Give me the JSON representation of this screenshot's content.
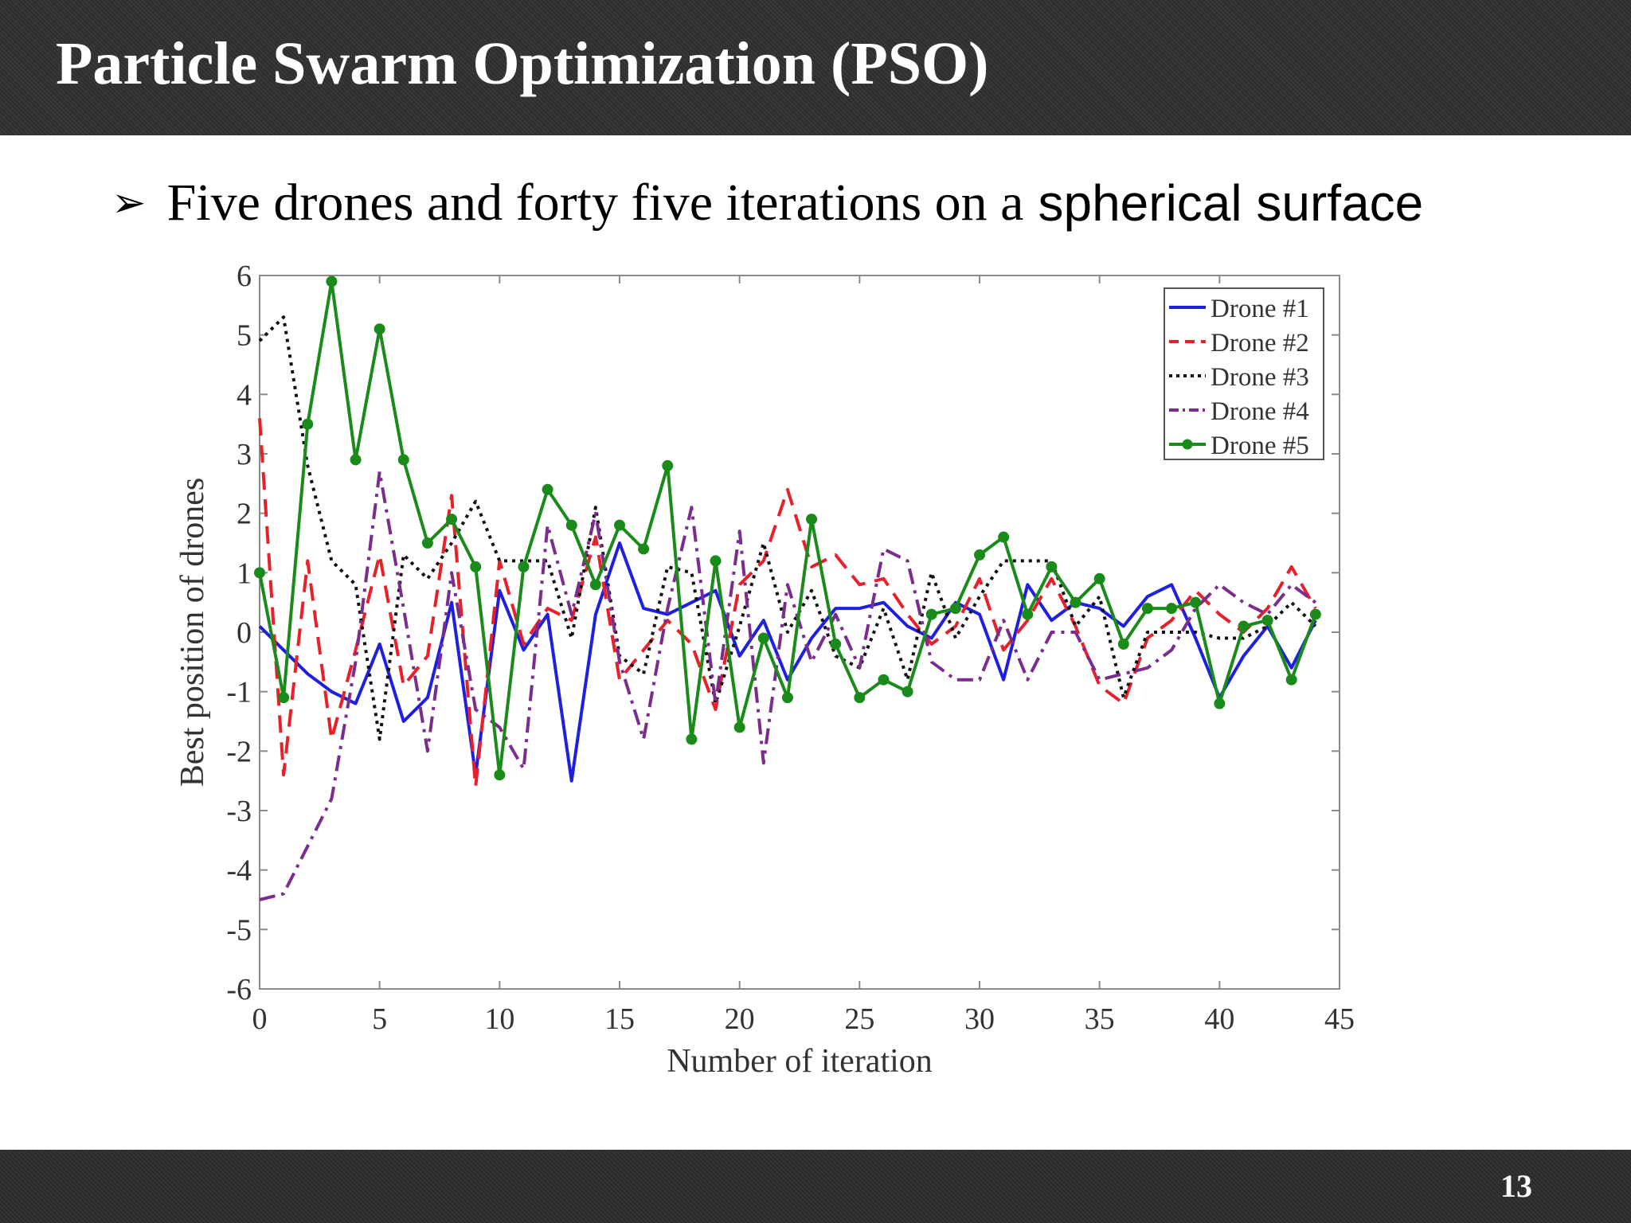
{
  "slide": {
    "title": "Particle Swarm Optimization (PSO)",
    "bullet_text": "Five drones and forty five iterations on a",
    "bullet_text_emphasis": "spherical surface",
    "page_number": "13"
  },
  "chart_data": {
    "type": "line",
    "xlabel": "Number of iteration",
    "ylabel": "Best position of drones",
    "xlim": [
      0,
      45
    ],
    "ylim": [
      -6,
      6
    ],
    "xticks": [
      0,
      5,
      10,
      15,
      20,
      25,
      30,
      35,
      40,
      45
    ],
    "yticks": [
      -6,
      -5,
      -4,
      -3,
      -2,
      -1,
      0,
      1,
      2,
      3,
      4,
      5,
      6
    ],
    "grid": false,
    "legend_position": "top-right",
    "series": [
      {
        "name": "Drone #1",
        "color": "#1f1fe0",
        "style": "solid",
        "marker": "none",
        "x": [
          0,
          1,
          2,
          3,
          4,
          5,
          6,
          7,
          8,
          9,
          10,
          11,
          12,
          13,
          14,
          15,
          16,
          17,
          18,
          19,
          20,
          21,
          22,
          23,
          24,
          25,
          26,
          27,
          28,
          29,
          30,
          31,
          32,
          33,
          34,
          35,
          36,
          37,
          38,
          39,
          40,
          41,
          42,
          43,
          44
        ],
        "y": [
          0.1,
          -0.3,
          -0.7,
          -1.0,
          -1.2,
          -0.2,
          -1.5,
          -1.1,
          0.5,
          -2.4,
          0.7,
          -0.3,
          0.3,
          -2.5,
          0.3,
          1.5,
          0.4,
          0.3,
          0.5,
          0.7,
          -0.4,
          0.2,
          -0.8,
          -0.1,
          0.4,
          0.4,
          0.5,
          0.1,
          -0.1,
          0.5,
          0.3,
          -0.8,
          0.8,
          0.2,
          0.5,
          0.4,
          0.1,
          0.6,
          0.8,
          -0.1,
          -1.1,
          -0.4,
          0.1,
          -0.6,
          0.2
        ]
      },
      {
        "name": "Drone #2",
        "color": "#e8202a",
        "style": "dashed",
        "marker": "none",
        "x": [
          0,
          1,
          2,
          3,
          4,
          5,
          6,
          7,
          8,
          9,
          10,
          11,
          12,
          13,
          14,
          15,
          16,
          17,
          18,
          19,
          20,
          21,
          22,
          23,
          24,
          25,
          26,
          27,
          28,
          29,
          30,
          31,
          32,
          33,
          34,
          35,
          36,
          37,
          38,
          39,
          40,
          41,
          42,
          43,
          44
        ],
        "y": [
          3.6,
          -2.4,
          1.2,
          -1.8,
          -0.3,
          1.3,
          -0.9,
          -0.4,
          2.3,
          -2.6,
          1.2,
          -0.2,
          0.4,
          0.2,
          1.6,
          -0.8,
          -0.3,
          0.2,
          -0.2,
          -1.3,
          0.8,
          1.2,
          2.4,
          1.1,
          1.3,
          0.8,
          0.9,
          0.3,
          -0.2,
          0.1,
          0.9,
          -0.3,
          0.2,
          0.9,
          0.1,
          -0.9,
          -1.2,
          -0.1,
          0.2,
          0.7,
          0.3,
          0.0,
          0.4,
          1.1,
          0.4
        ]
      },
      {
        "name": "Drone #3",
        "color": "#111111",
        "style": "dotted",
        "marker": "none",
        "x": [
          0,
          1,
          2,
          3,
          4,
          5,
          6,
          7,
          8,
          9,
          10,
          11,
          12,
          13,
          14,
          15,
          16,
          17,
          18,
          19,
          20,
          21,
          22,
          23,
          24,
          25,
          26,
          27,
          28,
          29,
          30,
          31,
          32,
          33,
          34,
          35,
          36,
          37,
          38,
          39,
          40,
          41,
          42,
          43,
          44
        ],
        "y": [
          4.9,
          5.3,
          2.8,
          1.2,
          0.8,
          -1.8,
          1.3,
          0.9,
          1.5,
          2.2,
          1.2,
          1.2,
          1.2,
          -0.1,
          2.1,
          -0.4,
          -0.7,
          1.1,
          1.0,
          -1.2,
          0.1,
          1.5,
          0.0,
          0.7,
          -0.4,
          -0.6,
          0.4,
          -0.8,
          1.0,
          -0.1,
          0.6,
          1.2,
          1.2,
          1.2,
          0.1,
          0.6,
          -1.1,
          0.0,
          0.0,
          0.0,
          -0.1,
          -0.1,
          0.1,
          0.5,
          0.1
        ]
      },
      {
        "name": "Drone #4",
        "color": "#7b2d8e",
        "style": "dashdot",
        "marker": "none",
        "x": [
          0,
          1,
          2,
          3,
          4,
          5,
          6,
          7,
          8,
          9,
          10,
          11,
          12,
          13,
          14,
          15,
          16,
          17,
          18,
          19,
          20,
          21,
          22,
          23,
          24,
          25,
          26,
          27,
          28,
          29,
          30,
          31,
          32,
          33,
          34,
          35,
          36,
          37,
          38,
          39,
          40,
          41,
          42,
          43,
          44
        ],
        "y": [
          -4.5,
          -4.4,
          -3.6,
          -2.8,
          -0.5,
          2.7,
          0.4,
          -2.0,
          1.0,
          -1.3,
          -1.6,
          -2.3,
          1.8,
          0.3,
          2.0,
          -0.5,
          -1.8,
          0.4,
          2.1,
          -1.2,
          1.7,
          -2.2,
          0.8,
          -0.5,
          0.3,
          -0.6,
          1.4,
          1.2,
          -0.5,
          -0.8,
          -0.8,
          0.2,
          -0.8,
          0.0,
          0.0,
          -0.8,
          -0.7,
          -0.6,
          -0.3,
          0.4,
          0.8,
          0.5,
          0.3,
          0.8,
          0.5
        ]
      },
      {
        "name": "Drone #5",
        "color": "#1a8a1a",
        "style": "solid",
        "marker": "circle",
        "x": [
          0,
          1,
          2,
          3,
          4,
          5,
          6,
          7,
          8,
          9,
          10,
          11,
          12,
          13,
          14,
          15,
          16,
          17,
          18,
          19,
          20,
          21,
          22,
          23,
          24,
          25,
          26,
          27,
          28,
          29,
          30,
          31,
          32,
          33,
          34,
          35,
          36,
          37,
          38,
          39,
          40,
          41,
          42,
          43,
          44
        ],
        "y": [
          1.0,
          -1.1,
          3.5,
          5.9,
          2.9,
          5.1,
          2.9,
          1.5,
          1.9,
          1.1,
          -2.4,
          1.1,
          2.4,
          1.8,
          0.8,
          1.8,
          1.4,
          2.8,
          -1.8,
          1.2,
          -1.6,
          -0.1,
          -1.1,
          1.9,
          -0.2,
          -1.1,
          -0.8,
          -1.0,
          0.3,
          0.4,
          1.3,
          1.6,
          0.3,
          1.1,
          0.5,
          0.9,
          -0.2,
          0.4,
          0.4,
          0.5,
          -1.2,
          0.1,
          0.2,
          -0.8,
          0.3
        ]
      }
    ]
  }
}
